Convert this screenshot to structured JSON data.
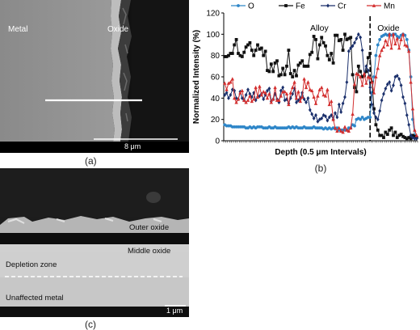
{
  "panel_a": {
    "label_metal": "Metal",
    "label_oxide": "Oxide",
    "scale_label": "8 μm",
    "caption": "(a)"
  },
  "panel_c": {
    "label_outer": "Outer oxide",
    "label_middle": "Middle oxide",
    "label_depletion": "Depletion zone",
    "label_unaffected": "Unaffected metal",
    "scale_label": "1 μm",
    "caption": "(c)"
  },
  "chart_data": {
    "type": "line",
    "caption": "(b)",
    "xlabel": "Depth (0.5 μm Intervals)",
    "ylabel": "Normalized Intensity (%)",
    "ylim": [
      0,
      120
    ],
    "yticks": [
      0,
      20,
      40,
      60,
      80,
      100,
      120
    ],
    "x_count": 100,
    "grid": false,
    "legend_position": "top",
    "region_labels": {
      "alloy": "Alloy",
      "oxide": "Oxide"
    },
    "boundary_x": 75,
    "series": [
      {
        "name": "O",
        "color": "#2e86c8",
        "marker": "circle",
        "values": [
          15,
          14,
          14,
          14,
          13,
          13,
          13,
          13,
          13,
          13,
          13,
          12,
          12,
          13,
          12,
          13,
          12,
          13,
          13,
          13,
          12,
          12,
          12,
          13,
          12,
          12,
          13,
          12,
          12,
          12,
          12,
          12,
          12,
          13,
          12,
          13,
          12,
          13,
          12,
          12,
          12,
          13,
          12,
          12,
          12,
          12,
          13,
          12,
          12,
          12,
          12,
          11,
          12,
          11,
          12,
          11,
          12,
          11,
          12,
          10,
          10,
          10,
          10,
          10,
          12,
          12,
          15,
          14,
          20,
          21,
          20,
          22,
          20,
          21,
          22,
          22,
          45,
          60,
          80,
          90,
          95,
          98,
          99,
          100,
          99,
          100,
          99,
          100,
          100,
          98,
          97,
          99,
          100,
          99,
          95,
          85,
          60,
          20,
          5,
          3
        ]
      },
      {
        "name": "Fe",
        "color": "#111111",
        "marker": "square",
        "values": [
          79,
          79,
          80,
          82,
          82,
          90,
          95,
          82,
          80,
          79,
          83,
          88,
          90,
          92,
          85,
          80,
          85,
          90,
          86,
          87,
          80,
          84,
          66,
          65,
          72,
          65,
          73,
          75,
          61,
          62,
          68,
          62,
          70,
          85,
          63,
          60,
          66,
          61,
          71,
          73,
          75,
          70,
          70,
          70,
          81,
          83,
          98,
          95,
          77,
          90,
          97,
          92,
          89,
          80,
          76,
          82,
          73,
          99,
          99,
          94,
          95,
          85,
          100,
          95,
          96,
          97,
          62,
          50,
          46,
          70,
          65,
          60,
          61,
          65,
          78,
          82,
          55,
          30,
          15,
          10,
          5,
          5,
          3,
          8,
          6,
          10,
          12,
          5,
          8,
          3,
          5,
          6,
          4,
          3,
          2,
          3,
          2,
          5,
          4,
          3
        ]
      },
      {
        "name": "Cr",
        "color": "#1a2f6b",
        "marker": "diamond",
        "values": [
          43,
          45,
          40,
          43,
          48,
          47,
          40,
          39,
          46,
          40,
          38,
          43,
          48,
          44,
          41,
          45,
          38,
          41,
          42,
          44,
          39,
          43,
          47,
          49,
          37,
          39,
          44,
          39,
          36,
          47,
          50,
          38,
          39,
          35,
          40,
          44,
          49,
          36,
          38,
          40,
          45,
          39,
          36,
          40,
          29,
          25,
          21,
          24,
          18,
          20,
          21,
          24,
          23,
          19,
          22,
          24,
          20,
          26,
          22,
          34,
          27,
          35,
          41,
          55,
          84,
          87,
          89,
          92,
          96,
          100,
          97,
          85,
          62,
          70,
          66,
          50,
          34,
          26,
          22,
          20,
          28,
          38,
          44,
          49,
          53,
          55,
          47,
          52,
          60,
          61,
          58,
          52,
          41,
          35,
          24,
          15,
          5,
          3,
          2,
          2
        ]
      },
      {
        "name": "Mn",
        "color": "#d32f2f",
        "marker": "triangle",
        "values": [
          54,
          48,
          54,
          55,
          58,
          40,
          36,
          39,
          45,
          47,
          38,
          36,
          38,
          42,
          37,
          39,
          50,
          41,
          51,
          43,
          46,
          45,
          40,
          44,
          36,
          39,
          50,
          38,
          38,
          42,
          46,
          46,
          44,
          34,
          45,
          50,
          55,
          40,
          46,
          37,
          41,
          58,
          50,
          55,
          48,
          47,
          41,
          35,
          42,
          48,
          50,
          43,
          42,
          48,
          34,
          37,
          20,
          12,
          9,
          12,
          9,
          8,
          13,
          10,
          9,
          12,
          25,
          53,
          63,
          62,
          60,
          52,
          63,
          54,
          60,
          59,
          55,
          45,
          60,
          68,
          80,
          85,
          88,
          94,
          90,
          100,
          87,
          100,
          91,
          96,
          87,
          95,
          100,
          90,
          89,
          84,
          55,
          30,
          10,
          5
        ]
      }
    ]
  }
}
